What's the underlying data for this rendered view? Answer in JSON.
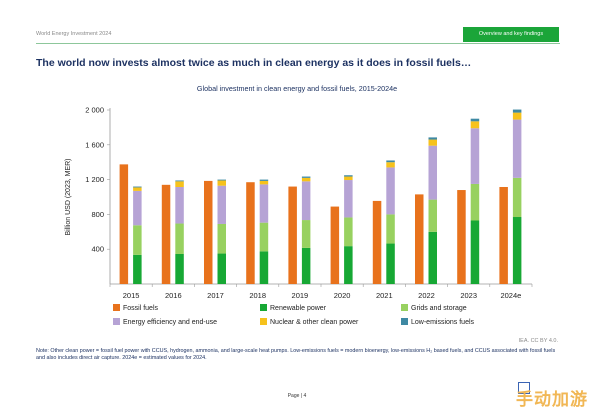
{
  "header": {
    "report_label": "World Energy Investment 2024",
    "tab_label": "Overview and key findings"
  },
  "main_title": "The world now invests almost twice as much in clean energy as it does in fossil fuels…",
  "credit": "IEA. CC BY 4.0.",
  "note": "Note: Other clean power = fossil fuel power with CCUS, hydrogen, ammonia, and large-scale heat pumps. Low-emissions fuels = modern bioenergy, low-emissions H₂ based fuels, and CCUS associated with fossil fuels and also includes direct air capture. 2024e = estimated values for 2024.",
  "page_label": "Page | 4",
  "watermark": "手动加游",
  "colors": {
    "fossil": "#e8721c",
    "renewable": "#17a834",
    "grids": "#98d160",
    "efficiency": "#b6a3d5",
    "nuclear": "#f6c21c",
    "lowemis": "#3e89a3",
    "axis_text": "#222222",
    "title": "#1d3262"
  },
  "chart_data": {
    "type": "bar",
    "title": "Global investment in clean energy and fossil fuels, 2015-2024e",
    "ylabel": "Billion USD (2023, MER)",
    "xlabel": "",
    "ylim": [
      0,
      2000
    ],
    "yticks": [
      400,
      800,
      1200,
      1600,
      2000
    ],
    "ytick_labels": [
      "400",
      "800",
      "1 200",
      "1 600",
      "2 000"
    ],
    "categories": [
      "2015",
      "2016",
      "2017",
      "2018",
      "2019",
      "2020",
      "2021",
      "2022",
      "2023",
      "2024e"
    ],
    "fossil": [
      1375,
      1140,
      1185,
      1170,
      1120,
      890,
      955,
      1030,
      1080,
      1115
    ],
    "clean_stack_order": [
      "Renewable power",
      "Grids and storage",
      "Energy efficiency and end-use",
      "Nuclear & other clean power",
      "Low-emissions fuels"
    ],
    "clean_series": [
      {
        "name": "Renewable power",
        "color_key": "renewable",
        "values": [
          335,
          345,
          350,
          375,
          415,
          435,
          465,
          600,
          730,
          770
        ]
      },
      {
        "name": "Grids and storage",
        "color_key": "grids",
        "values": [
          340,
          350,
          340,
          330,
          320,
          330,
          335,
          370,
          420,
          450
        ]
      },
      {
        "name": "Energy efficiency and end-use",
        "color_key": "efficiency",
        "values": [
          395,
          420,
          440,
          440,
          445,
          430,
          540,
          620,
          640,
          670
        ]
      },
      {
        "name": "Nuclear & other clean power",
        "color_key": "nuclear",
        "values": [
          40,
          65,
          60,
          40,
          40,
          40,
          60,
          70,
          80,
          80
        ]
      },
      {
        "name": "Low-emissions fuels",
        "color_key": "lowemis",
        "values": [
          10,
          10,
          10,
          15,
          15,
          15,
          20,
          25,
          30,
          35
        ]
      }
    ],
    "legend": [
      {
        "name": "Fossil fuels",
        "color_key": "fossil"
      },
      {
        "name": "Renewable power",
        "color_key": "renewable"
      },
      {
        "name": "Grids and storage",
        "color_key": "grids"
      },
      {
        "name": "Energy efficiency and end-use",
        "color_key": "efficiency"
      },
      {
        "name": "Nuclear & other clean power",
        "color_key": "nuclear"
      },
      {
        "name": "Low-emissions fuels",
        "color_key": "lowemis"
      }
    ],
    "legend_position": "bottom",
    "grid": false
  }
}
